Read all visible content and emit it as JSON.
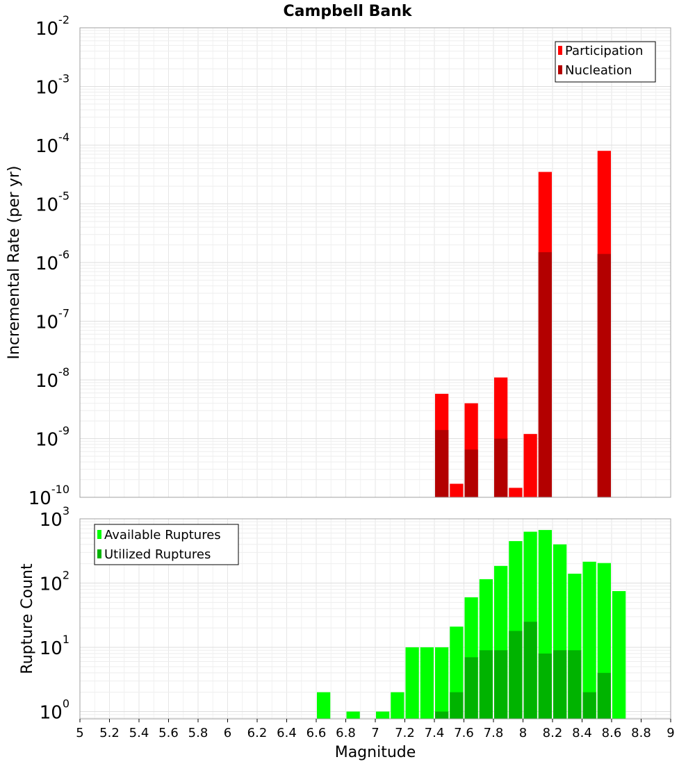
{
  "chart_data": [
    {
      "type": "bar",
      "title": "Campbell Bank",
      "xlabel": "",
      "ylabel": "Incremental Rate (per yr)",
      "yscale": "log",
      "xlim": [
        5,
        9
      ],
      "ylim": [
        1e-10,
        0.01
      ],
      "y_tick_exponents": [
        "-10",
        "-9",
        "-8",
        "-7",
        "-6",
        "-5",
        "-4",
        "-3",
        "-2"
      ],
      "grid": true,
      "legend_position": "top-right",
      "bar_width": 0.1,
      "series": [
        {
          "name": "Participation",
          "color": "#ff0000",
          "x": [
            7.45,
            7.55,
            7.65,
            7.85,
            7.95,
            8.05,
            8.15,
            8.55
          ],
          "values": [
            5.8e-09,
            1.7e-10,
            4e-09,
            1.1e-08,
            1.45e-10,
            1.2e-09,
            3.5e-05,
            8e-05
          ]
        },
        {
          "name": "Nucleation",
          "color": "#b30000",
          "x": [
            7.45,
            7.65,
            7.85,
            8.15,
            8.55
          ],
          "values": [
            1.4e-09,
            6.5e-10,
            1e-09,
            1.5e-06,
            1.4e-06
          ]
        }
      ]
    },
    {
      "type": "bar",
      "title": "",
      "xlabel": "Magnitude",
      "ylabel": "Rupture Count",
      "yscale": "log",
      "xlim": [
        5,
        9
      ],
      "ylim": [
        0.77,
        1000
      ],
      "y_tick_exponents": [
        "0",
        "1",
        "2",
        "3"
      ],
      "x_ticks": [
        "5",
        "5.2",
        "5.4",
        "5.6",
        "5.8",
        "6",
        "6.2",
        "6.4",
        "6.6",
        "6.8",
        "7",
        "7.2",
        "7.4",
        "7.6",
        "7.8",
        "8",
        "8.2",
        "8.4",
        "8.6",
        "8.8",
        "9"
      ],
      "grid": true,
      "legend_position": "top-left",
      "bar_width": 0.1,
      "series": [
        {
          "name": "Available Ruptures",
          "color": "#00ff00",
          "x": [
            6.65,
            6.85,
            7.05,
            7.15,
            7.25,
            7.35,
            7.45,
            7.55,
            7.65,
            7.75,
            7.85,
            7.95,
            8.05,
            8.15,
            8.25,
            8.35,
            8.45,
            8.55,
            8.65
          ],
          "values": [
            2,
            1,
            1,
            2,
            10,
            10,
            10,
            21,
            60,
            115,
            185,
            450,
            630,
            670,
            400,
            140,
            215,
            205,
            75
          ]
        },
        {
          "name": "Utilized Ruptures",
          "color": "#00b300",
          "x": [
            7.45,
            7.55,
            7.65,
            7.75,
            7.85,
            7.95,
            8.05,
            8.15,
            8.25,
            8.35,
            8.45,
            8.55
          ],
          "values": [
            1,
            2,
            7,
            9,
            9,
            18,
            25,
            8,
            9,
            9,
            2,
            4
          ]
        }
      ]
    }
  ]
}
